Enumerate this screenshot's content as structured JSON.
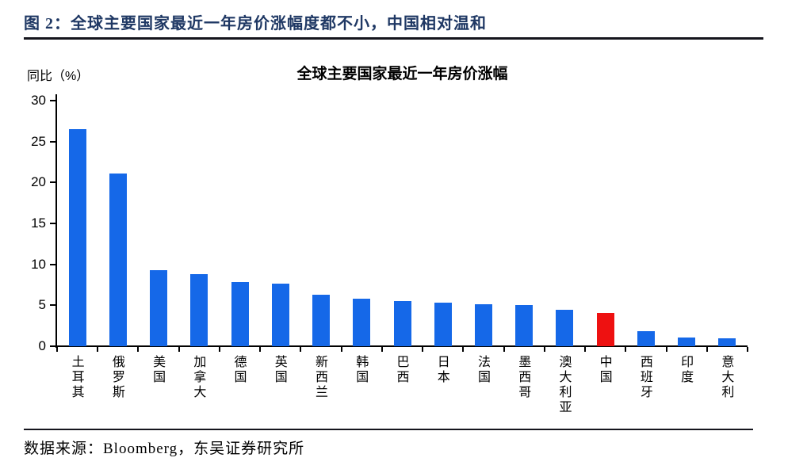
{
  "figure_header": {
    "title": "图 2：全球主要国家最近一年房价涨幅度都不小，中国相对温和"
  },
  "chart_data": {
    "type": "bar",
    "title": "全球主要国家最近一年房价涨幅",
    "ylabel": "同比（%）",
    "xlabel": "",
    "categories": [
      "土耳其",
      "俄罗斯",
      "美国",
      "加拿大",
      "德国",
      "英国",
      "新西兰",
      "韩国",
      "巴西",
      "日本",
      "法国",
      "墨西哥",
      "澳大利亚",
      "中国",
      "西班牙",
      "印度",
      "意大利"
    ],
    "values": [
      26.5,
      21.1,
      9.3,
      8.8,
      7.8,
      7.6,
      6.3,
      5.8,
      5.5,
      5.3,
      5.1,
      5.0,
      4.5,
      4.1,
      1.8,
      1.1,
      1.0
    ],
    "ylim": [
      0,
      30
    ],
    "yticks": [
      0,
      5,
      10,
      15,
      20,
      25,
      30
    ],
    "grid": false,
    "legend": false,
    "bar_color": "#1568E8",
    "highlight_category": "中国",
    "highlight_color": "#EE1111"
  },
  "footer": {
    "source_text": "数据来源：Bloomberg，东吴证券研究所"
  }
}
